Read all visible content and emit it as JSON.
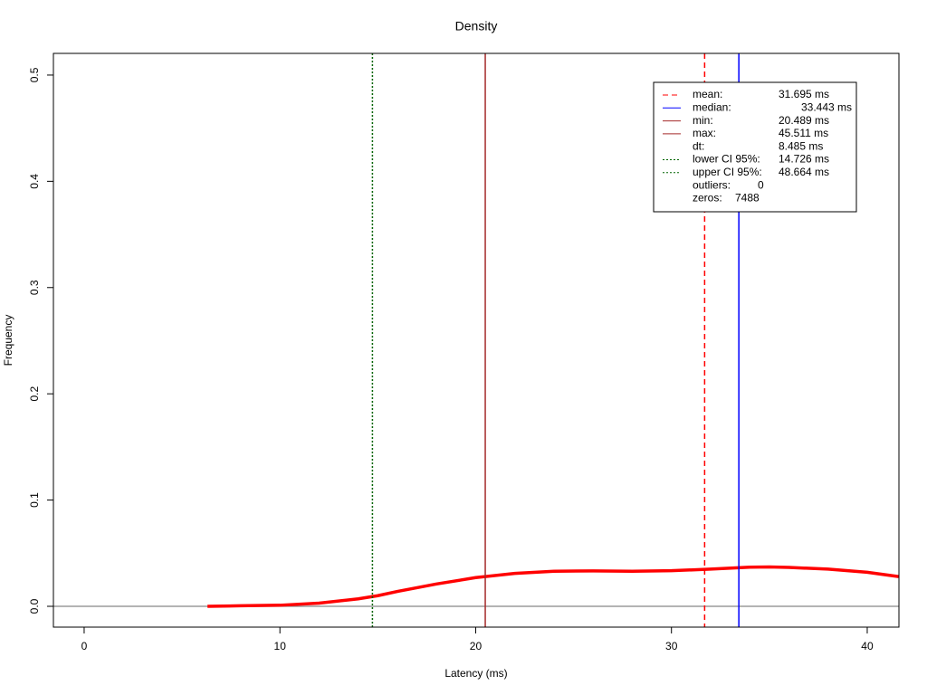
{
  "chart_data": {
    "type": "density",
    "title": "Density",
    "x_label": "Latency (ms)",
    "y_label": "Frequency",
    "xlim": [
      -1.57,
      41.62
    ],
    "ylim": [
      -0.0196,
      0.5204
    ],
    "xticks": [
      0,
      10,
      20,
      30,
      40
    ],
    "yticks": [
      {
        "value": 0,
        "label": "0.0"
      },
      {
        "value": 0.1,
        "label": "0.1"
      },
      {
        "value": 0.2,
        "label": "0.2"
      },
      {
        "value": 0.3,
        "label": "0.3"
      },
      {
        "value": 0.4,
        "label": "0.4"
      },
      {
        "value": 0.5,
        "label": "0.5"
      }
    ],
    "series": [
      {
        "name": "density",
        "color": "#ff0000",
        "x": [
          6.3,
          8,
          10,
          12,
          14,
          15,
          16,
          18,
          20,
          22,
          24,
          26,
          28,
          30,
          32,
          34,
          35,
          36,
          38,
          40,
          41.6
        ],
        "values": [
          0,
          0.0005,
          0.001,
          0.003,
          0.007,
          0.01,
          0.014,
          0.021,
          0.027,
          0.031,
          0.033,
          0.0333,
          0.033,
          0.0335,
          0.035,
          0.0368,
          0.037,
          0.0366,
          0.035,
          0.032,
          0.028
        ]
      }
    ],
    "legend": [
      {
        "name": "mean:",
        "value": 31.695,
        "label": "31.695 ms",
        "color": "#ff0000",
        "dash": "6,4"
      },
      {
        "name": "median:",
        "value": 33.443,
        "label": "33.443 ms",
        "color": "#0000ff",
        "dash": "none"
      },
      {
        "name": "min:",
        "value": 20.489,
        "label": "20.489 ms",
        "color": "#a52a2a",
        "dash": "none"
      },
      {
        "name": "max:",
        "value": 45.511,
        "label": "45.511 ms",
        "color": "#a52a2a",
        "dash": "none"
      },
      {
        "name": "dt:",
        "value": 8.485,
        "label": "8.485 ms"
      },
      {
        "name": "lower CI 95%:",
        "value": 14.726,
        "label": "14.726 ms",
        "color": "#006400",
        "dash": "2,2"
      },
      {
        "name": "upper CI 95%:",
        "value": 48.664,
        "label": "48.664 ms",
        "color": "#006400",
        "dash": "2,2"
      },
      {
        "name": "outliers:",
        "value": 0
      },
      {
        "name": "zeros:",
        "value": 7488
      }
    ]
  }
}
